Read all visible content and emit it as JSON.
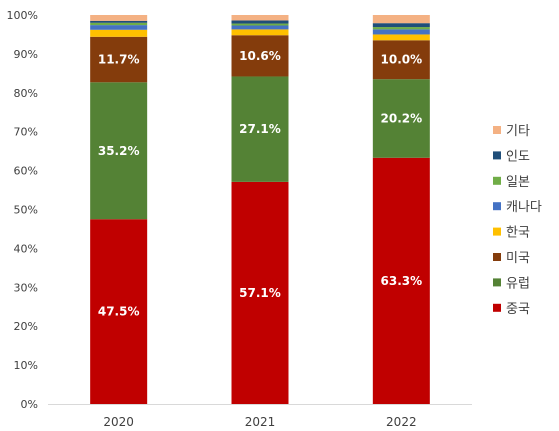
{
  "chart_data": {
    "type": "bar",
    "stacked": true,
    "percent_stacked": true,
    "categories": [
      "2020",
      "2021",
      "2022"
    ],
    "ylim": [
      0,
      100
    ],
    "yticks": [
      "0%",
      "10%",
      "20%",
      "30%",
      "40%",
      "50%",
      "60%",
      "70%",
      "80%",
      "90%",
      "100%"
    ],
    "grid": false,
    "legend_position": "right",
    "series": [
      {
        "name": "중국",
        "color": "#C00000",
        "values": [
          47.5,
          57.1,
          63.3
        ],
        "labels": [
          "47.5%",
          "57.1%",
          "63.3%"
        ]
      },
      {
        "name": "유럽",
        "color": "#548235",
        "values": [
          35.2,
          27.1,
          20.2
        ],
        "labels": [
          "35.2%",
          "27.1%",
          "20.2%"
        ]
      },
      {
        "name": "미국",
        "color": "#843C0C",
        "values": [
          11.7,
          10.6,
          10.0
        ],
        "labels": [
          "11.7%",
          "10.6%",
          "10.0%"
        ]
      },
      {
        "name": "한국",
        "color": "#FFC000",
        "values": [
          1.8,
          1.5,
          1.5
        ]
      },
      {
        "name": "캐나다",
        "color": "#4472C4",
        "values": [
          1.2,
          1.0,
          1.3
        ]
      },
      {
        "name": "일본",
        "color": "#70AD47",
        "values": [
          0.6,
          0.5,
          0.6
        ]
      },
      {
        "name": "인도",
        "color": "#1F4E79",
        "values": [
          0.5,
          0.8,
          1.0
        ]
      },
      {
        "name": "기타",
        "color": "#F4B183",
        "values": [
          1.5,
          1.4,
          2.1
        ]
      }
    ]
  }
}
